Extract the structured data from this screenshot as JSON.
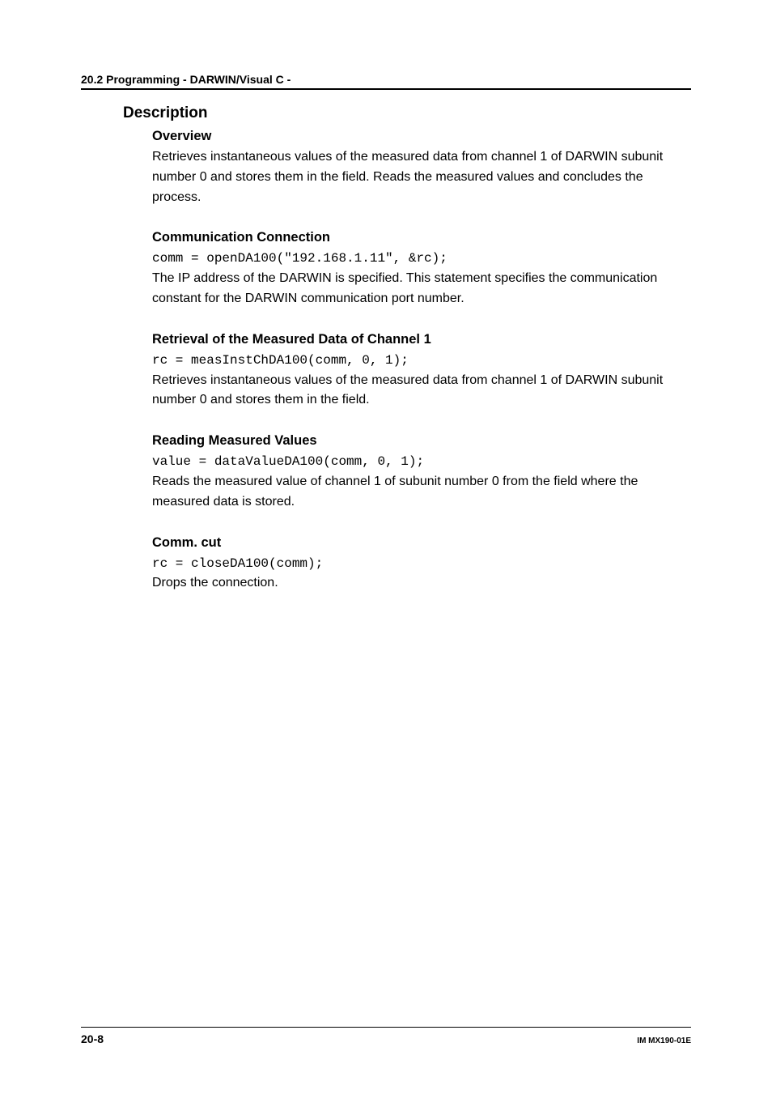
{
  "page": {
    "running_head": "20.2  Programming - DARWIN/Visual C -",
    "page_number": "20-8",
    "doc_id": "IM MX190-01E"
  },
  "heading": "Description",
  "sections": [
    {
      "title": "Overview",
      "code": null,
      "text": "Retrieves instantaneous values of the measured data from channel 1 of DARWIN subunit number 0 and stores them in the field. Reads the measured values and concludes the process."
    },
    {
      "title": "Communication Connection",
      "code": "comm = openDA100(\"192.168.1.11\", &rc);",
      "text": "The IP address of the DARWIN is specified. This statement specifies the communication constant for the DARWIN communication port number."
    },
    {
      "title": "Retrieval of the Measured Data of Channel 1",
      "code": "rc = measInstChDA100(comm, 0, 1);",
      "text": "Retrieves instantaneous values of the measured data from channel 1 of DARWIN subunit number 0 and stores them in the field."
    },
    {
      "title": "Reading Measured Values",
      "code": "value = dataValueDA100(comm, 0, 1);",
      "text": "Reads the measured value of channel 1 of subunit number 0 from the field where the measured data is stored."
    },
    {
      "title": "Comm. cut",
      "code": "rc = closeDA100(comm);",
      "text": "Drops the connection."
    }
  ],
  "style": {
    "background_color": "#ffffff",
    "text_color": "#000000",
    "rule_color": "#000000",
    "body_font_family": "Arial, Helvetica, sans-serif",
    "code_font_family": "Courier New, Courier, monospace",
    "running_head_fontsize": 14,
    "heading_fontsize": 19,
    "subheading_fontsize": 16.5,
    "body_fontsize": 16,
    "code_fontsize": 16,
    "pagenum_fontsize": 14,
    "docid_fontsize": 10,
    "line_height": 1.55
  }
}
